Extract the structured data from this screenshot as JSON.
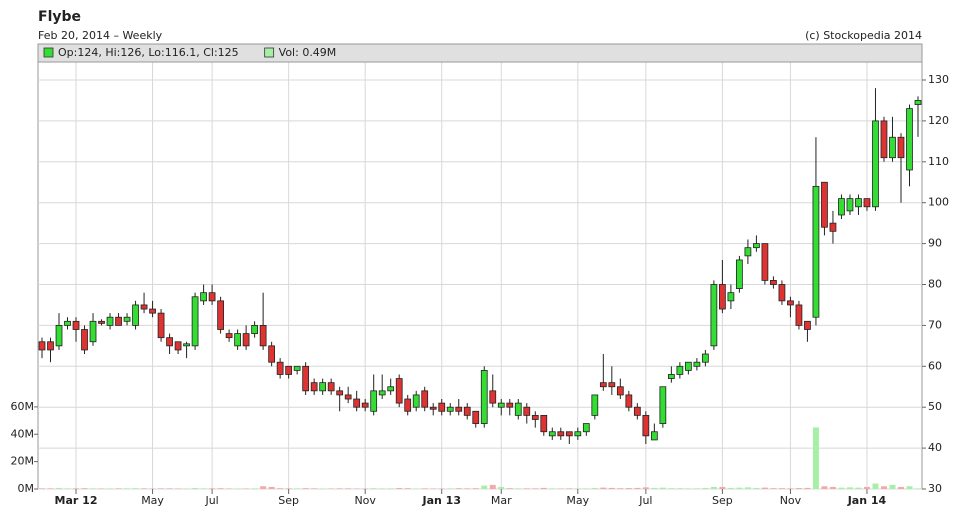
{
  "chart_data": {
    "type": "candlestick",
    "title": "Flybe",
    "subtitle": "Feb 20, 2014 – Weekly",
    "source": "(c) Stockopedia 2014",
    "categories": [
      null,
      null,
      null,
      null,
      "Mar 12",
      null,
      null,
      null,
      null,
      null,
      null,
      null,
      null,
      "May",
      null,
      null,
      null,
      null,
      null,
      null,
      "Jul",
      null,
      null,
      null,
      null,
      null,
      null,
      null,
      null,
      "Sep",
      null,
      null,
      null,
      null,
      null,
      null,
      null,
      null,
      "Nov",
      null,
      null,
      null,
      null,
      null,
      null,
      null,
      null,
      "Jan 13",
      null,
      null,
      null,
      null,
      null,
      null,
      "Mar",
      null,
      null,
      null,
      null,
      null,
      null,
      null,
      null,
      "May",
      null,
      null,
      null,
      null,
      null,
      null,
      null,
      "Jul",
      null,
      null,
      null,
      null,
      null,
      null,
      null,
      null,
      "Sep",
      null,
      null,
      null,
      null,
      null,
      null,
      null,
      "Nov",
      null,
      null,
      null,
      null,
      null,
      null,
      null,
      null,
      "Jan 14",
      null,
      null,
      null,
      null,
      null,
      null
    ],
    "series": [
      {
        "name": "Op:124, Hi:126, Lo:116.1, Cl:125",
        "color": "#33dd33",
        "color_down": "#dd3333",
        "open": [
          66,
          66,
          65,
          70,
          71,
          69,
          66,
          71,
          70,
          72,
          71,
          70,
          75,
          74,
          73,
          67,
          66,
          65,
          65,
          76,
          78,
          76,
          68,
          65,
          68,
          68,
          70,
          65,
          61,
          60,
          59,
          60,
          56,
          54,
          56,
          54,
          53,
          52,
          51,
          49,
          53,
          54,
          57,
          52,
          50,
          54,
          50,
          51,
          49,
          50,
          50,
          49,
          46,
          54,
          50,
          51,
          48,
          50,
          48,
          48,
          43,
          44,
          44,
          43,
          44,
          48,
          56,
          56,
          55,
          53,
          50,
          48,
          42,
          46,
          57,
          58,
          59,
          60,
          61,
          65,
          80,
          76,
          79,
          87,
          89,
          90,
          81,
          80,
          76,
          75,
          71,
          72,
          105,
          95,
          97,
          98,
          99,
          101,
          99,
          120,
          111,
          116,
          108,
          124
        ],
        "high": [
          67,
          67,
          73,
          72,
          72,
          70,
          73,
          71.5,
          73,
          73,
          73,
          76,
          78,
          76,
          74,
          68,
          66,
          66,
          78,
          80,
          80,
          77,
          69,
          69,
          70,
          71,
          78,
          66,
          62,
          60,
          60,
          61,
          57,
          57,
          57,
          55,
          55,
          54,
          52,
          58,
          58,
          57,
          58,
          53,
          54,
          55,
          51,
          52,
          51,
          52,
          51,
          49,
          60,
          58,
          52,
          52,
          52,
          51,
          49,
          48,
          45,
          45,
          44,
          45,
          46,
          53,
          63,
          60,
          57,
          54,
          51,
          49,
          46,
          55,
          60,
          61,
          61,
          62,
          64,
          81,
          86,
          80,
          87,
          91,
          92,
          90,
          82,
          81,
          77,
          76,
          71,
          116,
          105,
          98,
          102,
          102,
          102,
          101,
          128,
          121,
          121,
          117,
          124,
          126
        ],
        "low": [
          62,
          61,
          64,
          69,
          66,
          63,
          65,
          70,
          69,
          70,
          70,
          69,
          73,
          72,
          66,
          63,
          63,
          62,
          64,
          75,
          75,
          68,
          66,
          64,
          64,
          67,
          64,
          60,
          57,
          57,
          58,
          53,
          53,
          53,
          53,
          49,
          51,
          49,
          49,
          48,
          52,
          53,
          50,
          48,
          49,
          49,
          48,
          48,
          48,
          48,
          47,
          45,
          45,
          50,
          48,
          48,
          47,
          46,
          45,
          43,
          42,
          42,
          41,
          42,
          43,
          47,
          54,
          53,
          52,
          49,
          47,
          41,
          42,
          45,
          56,
          57,
          58,
          59,
          60,
          64,
          73,
          74,
          78,
          85,
          88,
          80,
          79,
          75,
          72,
          69,
          66,
          70,
          92,
          90,
          96,
          97,
          97,
          98,
          98,
          110,
          110,
          100,
          104,
          116.1
        ],
        "close": [
          64,
          64,
          70,
          71,
          69,
          64,
          71,
          70.5,
          72,
          70,
          72,
          75,
          74,
          73,
          67,
          65,
          64,
          65.5,
          77,
          78,
          76,
          69,
          67,
          68,
          65,
          70,
          65,
          61,
          58,
          58,
          60,
          54,
          54,
          56,
          54,
          53,
          52,
          50,
          50,
          54,
          54,
          55,
          51,
          49,
          53,
          50,
          49.5,
          49,
          50,
          49,
          48,
          46,
          59,
          51,
          51,
          50,
          51,
          48,
          47,
          44,
          44,
          43,
          43,
          44,
          46,
          53,
          55,
          55,
          53,
          50,
          48,
          43,
          44,
          55,
          58,
          60,
          61,
          61,
          63,
          80,
          74,
          78,
          86,
          89,
          90,
          81,
          80,
          76,
          75,
          70,
          69,
          104,
          94,
          93,
          101,
          101,
          101,
          99,
          120,
          111,
          116,
          111,
          123,
          125
        ]
      },
      {
        "name": "Vol: 0.49M",
        "axis": "y2",
        "color": "#a6f0a6",
        "color_down": "#f5a8a8",
        "values": [
          0.5,
          0.5,
          0.8,
          0.5,
          0.5,
          0.6,
          0.5,
          0.4,
          0.5,
          0.5,
          0.5,
          0.6,
          0.5,
          0.4,
          0.5,
          0.5,
          0.4,
          0.4,
          0.7,
          0.5,
          0.5,
          0.6,
          0.4,
          0.4,
          0.4,
          0.5,
          2,
          1.5,
          0.6,
          0.5,
          0.5,
          0.6,
          0.5,
          0.4,
          0.4,
          0.5,
          0.5,
          0.4,
          0.4,
          0.6,
          0.5,
          0.5,
          0.7,
          0.6,
          0.4,
          0.5,
          0.4,
          0.4,
          0.5,
          0.6,
          0.5,
          0.6,
          2.5,
          3,
          1.5,
          0.6,
          0.5,
          0.5,
          0.5,
          0.8,
          0.5,
          0.4,
          0.5,
          0.5,
          0.5,
          0.8,
          1,
          0.8,
          0.6,
          0.7,
          0.8,
          1.2,
          0.8,
          1,
          0.6,
          0.6,
          0.5,
          0.5,
          0.8,
          1.5,
          1.5,
          0.8,
          1,
          1.2,
          0.8,
          1,
          0.6,
          0.6,
          0.5,
          0.7,
          0.8,
          45,
          2,
          1.5,
          1,
          1.2,
          1,
          1.5,
          4,
          2,
          3,
          1.5,
          2,
          0.49
        ]
      }
    ],
    "ylim": [
      30,
      134.4
    ],
    "yticks": [
      30,
      40,
      50,
      60,
      70,
      80,
      90,
      100,
      110,
      120,
      130
    ],
    "y2lim": [
      0,
      312
    ],
    "y2ticks": [
      {
        "value": 0,
        "label": "0M"
      },
      {
        "value": 20,
        "label": "20M"
      },
      {
        "value": 40,
        "label": "40M"
      },
      {
        "value": 60,
        "label": "60M"
      }
    ],
    "grid": true
  }
}
